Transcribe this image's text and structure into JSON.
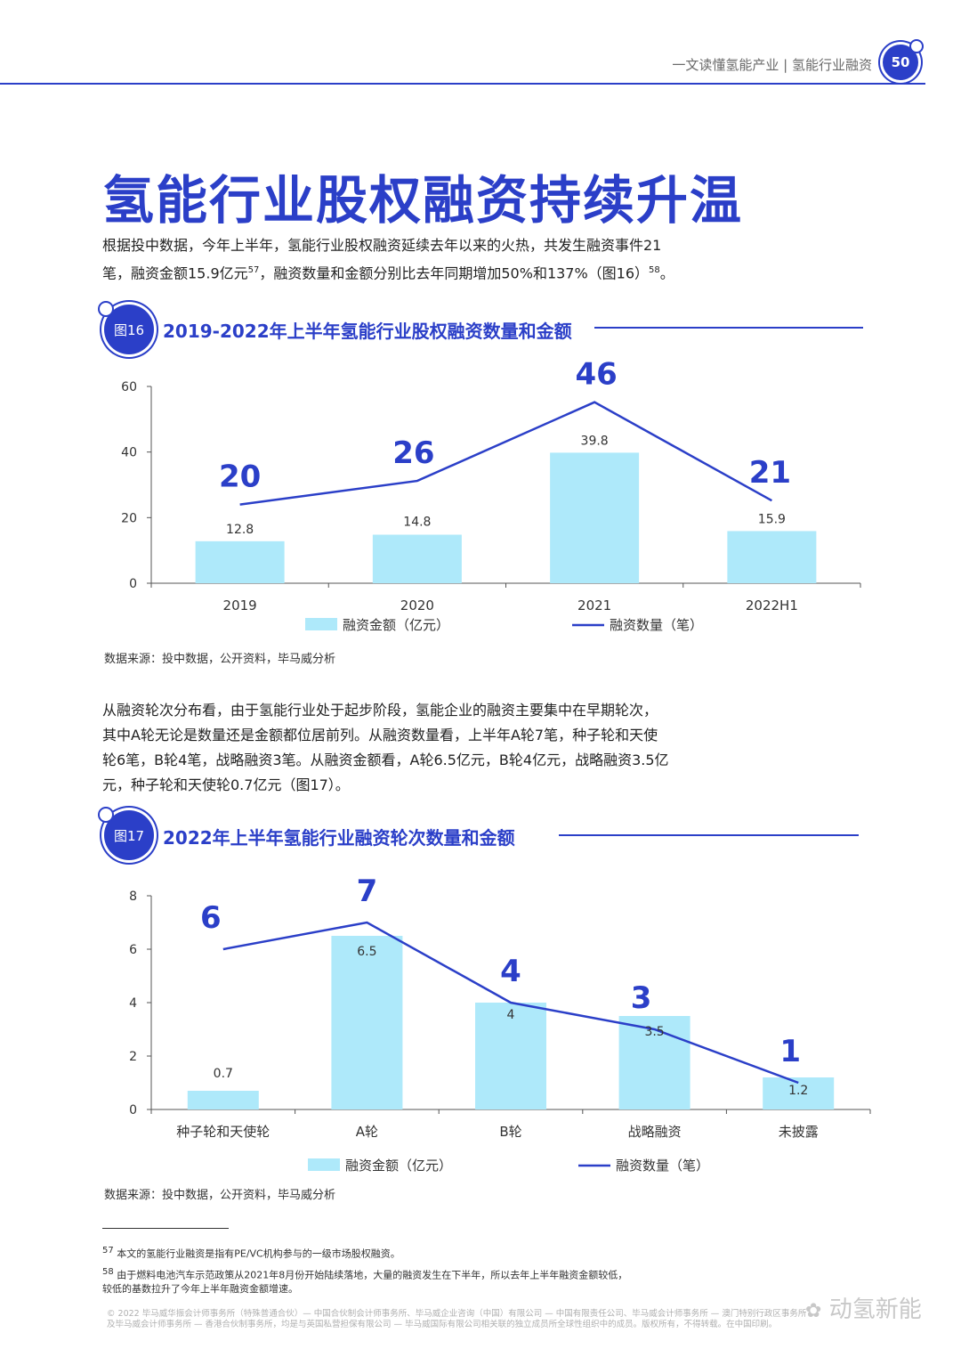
{
  "header": {
    "text": "一文读懂氢能产业 | 氢能行业融资",
    "page_number": "50"
  },
  "title": "氢能行业股权融资持续升温",
  "intro": {
    "line1": "根据投中数据，今年上半年，氢能行业股权融资延续去年以来的火热，共发生融资事件21",
    "line2a": "笔，融资金额15.9亿元",
    "sup1": "57",
    "line2b": "，融资数量和金额分别比去年同期增加50%和137%（图16）",
    "sup2": "58",
    "line2c": "。"
  },
  "fig16": {
    "badge": "图16",
    "title": "2019-2022年上半年氢能行业股权融资数量和金额",
    "source": "数据来源：投中数据，公开资料，毕马威分析"
  },
  "para2": {
    "line1": "从融资轮次分布看，由于氢能行业处于起步阶段，氢能企业的融资主要集中在早期轮次，",
    "line2": "其中A轮无论是数量还是金额都位居前列。从融资数量看，上半年A轮7笔，种子轮和天使",
    "line3": "轮6笔，B轮4笔，战略融资3笔。从融资金额看，A轮6.5亿元，B轮4亿元，战略融资3.5亿",
    "line4": "元，种子轮和天使轮0.7亿元（图17）。"
  },
  "fig17": {
    "badge": "图17",
    "title": "2022年上半年氢能行业融资轮次数量和金额",
    "source": "数据来源：投中数据，公开资料，毕马威分析"
  },
  "chart_data": [
    {
      "type": "bar",
      "categories": [
        "2019",
        "2020",
        "2021",
        "2022H1"
      ],
      "series": [
        {
          "name": "融资金额（亿元）",
          "type": "bar",
          "values": [
            12.8,
            14.8,
            39.8,
            15.9
          ],
          "color": "#aee9fa"
        },
        {
          "name": "融资数量（笔）",
          "type": "line",
          "values": [
            20,
            26,
            46,
            21
          ],
          "color": "#2b3fc8"
        }
      ],
      "yticks": [
        "0",
        "20",
        "40",
        "60"
      ],
      "ylim": [
        0,
        60
      ],
      "grid": false,
      "legend": "bottom"
    },
    {
      "type": "bar",
      "categories": [
        "种子轮和天使轮",
        "A轮",
        "B轮",
        "战略融资",
        "未披露"
      ],
      "series": [
        {
          "name": "融资金额（亿元）",
          "type": "bar",
          "values": [
            0.7,
            6.5,
            4,
            3.5,
            1.2
          ],
          "color": "#aee9fa"
        },
        {
          "name": "融资数量（笔）",
          "type": "line",
          "values": [
            6,
            7,
            4,
            3,
            1
          ],
          "color": "#2b3fc8"
        }
      ],
      "yticks": [
        "0",
        "2",
        "4",
        "6",
        "8"
      ],
      "ylim": [
        0,
        8
      ],
      "grid": false,
      "legend": "bottom"
    }
  ],
  "footnotes": {
    "fn57_num": "57",
    "fn57": "本文的氢能行业融资是指有PE/VC机构参与的一级市场股权融资。",
    "fn58_num": "58",
    "fn58_line1": "由于燃料电池汽车示范政策从2021年8月份开始陆续落地，大量的融资发生在下半年，所以去年上半年融资金额较低，",
    "fn58_line2": "较低的基数拉升了今年上半年融资金额增速。"
  },
  "copyright": {
    "line1": "© 2022 毕马威华振会计师事务所（特殊普通合伙）— 中国合伙制会计师事务所、毕马威企业咨询（中国）有限公司 — 中国有限责任公司、毕马威会计师事务所 — 澳门特别行政区事务所",
    "line2": "及毕马威会计师事务所 — 香港合伙制事务所，均是与英国私营担保有限公司 — 毕马威国际有限公司相关联的独立成员所全球性组织中的成员。版权所有，不得转载。在中国印刷。"
  },
  "watermark": "动氢新能"
}
